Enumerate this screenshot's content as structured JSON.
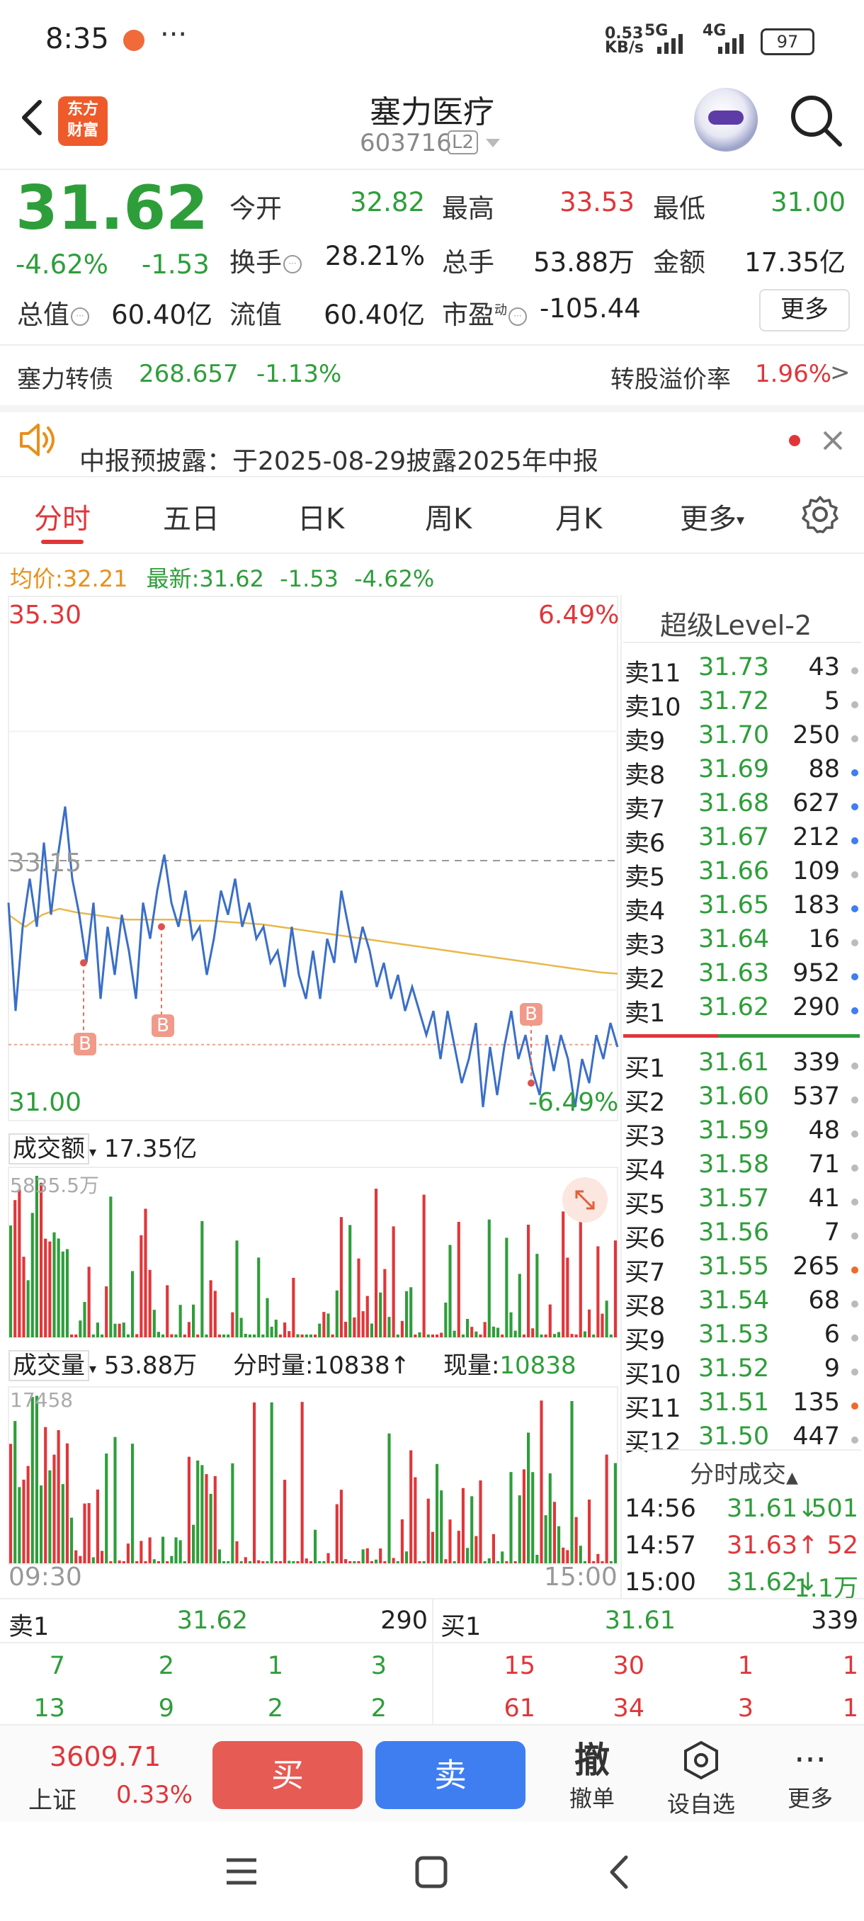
{
  "status_bar": {
    "time": "8:35",
    "dots": "···",
    "net_speed_top": "0.53",
    "net_speed_bottom": "KB/s",
    "sig1": "5G",
    "sig2": "4G",
    "battery": "97"
  },
  "header": {
    "logo_line1": "东方",
    "logo_line2": "财富",
    "name": "塞力医疗",
    "code": "603716",
    "level_badge": "L2"
  },
  "quote": {
    "price": "31.62",
    "change_pct": "-4.62%",
    "change": "-1.53",
    "open_label": "今开",
    "open": "32.82",
    "high_label": "最高",
    "high": "33.53",
    "low_label": "最低",
    "low": "31.00",
    "turnover_label": "换手",
    "turnover": "28.21%",
    "volume_label": "总手",
    "volume": "53.88万",
    "amount_label": "金额",
    "amount": "17.35亿",
    "mktcap_label": "总值",
    "mktcap": "60.40亿",
    "float_label": "流值",
    "float_cap": "60.40亿",
    "pe_label": "市盈",
    "pe_sup": "动",
    "pe": "-105.44",
    "more": "更多"
  },
  "bond": {
    "name": "塞力转债",
    "price": "268.657",
    "pct": "-1.13%",
    "premium_label": "转股溢价率",
    "premium": "1.96%",
    "arrow": ">"
  },
  "notice": {
    "text": "中报预披露：于2025-08-29披露2025年中报"
  },
  "tabs": {
    "t1": "分时",
    "t2": "五日",
    "t3": "日K",
    "t4": "周K",
    "t5": "月K",
    "t6": "更多"
  },
  "chart_info": {
    "avg_label": "均价:",
    "avg": "32.21",
    "last_label": "最新:",
    "last": "31.62",
    "chg": "-1.53",
    "pct": "-4.62%"
  },
  "chart_data": {
    "type": "line",
    "y_top": "35.30",
    "y_bottom": "31.00",
    "y_mid": "33.15",
    "pct_top": "6.49%",
    "pct_bottom": "-6.49%",
    "ylim": [
      31.0,
      35.3
    ],
    "x_start": "09:30",
    "x_end": "15:00",
    "marker": "B",
    "price": [
      32.8,
      31.9,
      32.6,
      33.0,
      32.6,
      33.3,
      32.7,
      33.2,
      33.6,
      33.0,
      32.7,
      32.3,
      32.8,
      32.0,
      32.6,
      32.2,
      32.7,
      32.4,
      32.0,
      32.8,
      32.5,
      32.9,
      33.2,
      32.8,
      32.6,
      32.9,
      32.5,
      32.6,
      32.2,
      32.5,
      32.9,
      32.7,
      33.0,
      32.6,
      32.8,
      32.5,
      32.6,
      32.3,
      32.4,
      32.1,
      32.6,
      32.2,
      32.0,
      32.4,
      32.0,
      32.5,
      32.3,
      32.9,
      32.6,
      32.3,
      32.6,
      32.4,
      32.1,
      32.3,
      32.0,
      32.2,
      31.9,
      32.1,
      31.9,
      31.7,
      31.9,
      31.5,
      31.9,
      31.6,
      31.3,
      31.5,
      31.8,
      31.1,
      31.6,
      31.2,
      31.6,
      31.9,
      31.5,
      31.7,
      31.4,
      31.2,
      31.7,
      31.4,
      31.7,
      31.5,
      31.1,
      31.5,
      31.3,
      31.7,
      31.5,
      31.8,
      31.6
    ],
    "avg": [
      32.7,
      32.6,
      32.7,
      32.75,
      32.72,
      32.7,
      32.68,
      32.66,
      32.66,
      32.66,
      32.66,
      32.65,
      32.65,
      32.64,
      32.63,
      32.62,
      32.6,
      32.58,
      32.56,
      32.54,
      32.52,
      32.5,
      32.48,
      32.46,
      32.44,
      32.42,
      32.4,
      32.38,
      32.36,
      32.34,
      32.32,
      32.3,
      32.28,
      32.26,
      32.24,
      32.22,
      32.21
    ],
    "amount_label": "成交额",
    "amount_total": "17.35亿",
    "amount_max": "5835.5万",
    "volume_label": "成交量",
    "volume_total": "53.88万",
    "tick_vol_label": "分时量:",
    "tick_vol": "10838↑",
    "cur_vol_label": "现量:",
    "cur_vol": "10838",
    "volume_max": "17458"
  },
  "level2": {
    "title": "超级Level-2",
    "asks": [
      {
        "label": "卖11",
        "price": "31.73",
        "qty": "43",
        "dot": "#bbbbbb"
      },
      {
        "label": "卖10",
        "price": "31.72",
        "qty": "5",
        "dot": "#bbbbbb"
      },
      {
        "label": "卖9",
        "price": "31.70",
        "qty": "250",
        "dot": "#bbbbbb"
      },
      {
        "label": "卖8",
        "price": "31.69",
        "qty": "88",
        "dot": "#3e7ef0"
      },
      {
        "label": "卖7",
        "price": "31.68",
        "qty": "627",
        "dot": "#3e7ef0"
      },
      {
        "label": "卖6",
        "price": "31.67",
        "qty": "212",
        "dot": "#3e7ef0"
      },
      {
        "label": "卖5",
        "price": "31.66",
        "qty": "109",
        "dot": "#bbbbbb"
      },
      {
        "label": "卖4",
        "price": "31.65",
        "qty": "183",
        "dot": "#3e7ef0"
      },
      {
        "label": "卖3",
        "price": "31.64",
        "qty": "16",
        "dot": "#bbbbbb"
      },
      {
        "label": "卖2",
        "price": "31.63",
        "qty": "952",
        "dot": "#3e7ef0"
      },
      {
        "label": "卖1",
        "price": "31.62",
        "qty": "290",
        "dot": "#3e7ef0"
      }
    ],
    "bids": [
      {
        "label": "买1",
        "price": "31.61",
        "qty": "339",
        "dot": "#bbbbbb"
      },
      {
        "label": "买2",
        "price": "31.60",
        "qty": "537",
        "dot": "#bbbbbb"
      },
      {
        "label": "买3",
        "price": "31.59",
        "qty": "48",
        "dot": "#bbbbbb"
      },
      {
        "label": "买4",
        "price": "31.58",
        "qty": "71",
        "dot": "#bbbbbb"
      },
      {
        "label": "买5",
        "price": "31.57",
        "qty": "41",
        "dot": "#bbbbbb"
      },
      {
        "label": "买6",
        "price": "31.56",
        "qty": "7",
        "dot": "#bbbbbb"
      },
      {
        "label": "买7",
        "price": "31.55",
        "qty": "265",
        "dot": "#ee6a2a"
      },
      {
        "label": "买8",
        "price": "31.54",
        "qty": "68",
        "dot": "#bbbbbb"
      },
      {
        "label": "买9",
        "price": "31.53",
        "qty": "6",
        "dot": "#bbbbbb"
      },
      {
        "label": "买10",
        "price": "31.52",
        "qty": "9",
        "dot": "#bbbbbb"
      },
      {
        "label": "买11",
        "price": "31.51",
        "qty": "135",
        "dot": "#ee6a2a"
      },
      {
        "label": "买12",
        "price": "31.50",
        "qty": "447",
        "dot": "#bbbbbb"
      }
    ],
    "ticks_title": "分时成交",
    "ticks": [
      {
        "time": "14:56",
        "price": "31.61↓",
        "qty": "501",
        "color": "green"
      },
      {
        "time": "14:57",
        "price": "31.63↑",
        "qty": "52",
        "color": "red"
      },
      {
        "time": "15:00",
        "price": "31.62↓",
        "qty": "1.1万",
        "color": "green"
      }
    ]
  },
  "bottom_table": {
    "left_label": "卖1",
    "left_price": "31.62",
    "left_qty": "290",
    "right_label": "买1",
    "right_price": "31.61",
    "right_qty": "339",
    "left_row1": [
      "7",
      "2",
      "1",
      "3"
    ],
    "left_row2": [
      "13",
      "9",
      "2",
      "2"
    ],
    "right_row1": [
      "15",
      "30",
      "1",
      "1"
    ],
    "right_row2": [
      "61",
      "34",
      "3",
      "1"
    ]
  },
  "toolbar": {
    "index_value": "3609.71",
    "index_name": "上证",
    "index_pct": "0.33%",
    "buy": "买",
    "sell": "卖",
    "cancel_icon": "撤",
    "cancel": "撤单",
    "watch": "设自选",
    "more": "更多"
  }
}
